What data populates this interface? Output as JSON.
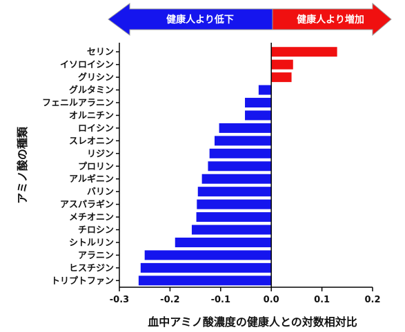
{
  "colors": {
    "decrease": "#1515ee",
    "increase": "#f01010",
    "axis": "#000000",
    "arrow_stroke": "#9a9a9a"
  },
  "banner": {
    "decrease_label": "健康人より低下",
    "increase_label": "健康人より増加"
  },
  "chart_data": {
    "type": "bar",
    "orientation": "horizontal",
    "xlabel": "血中アミノ酸濃度の健康人との対数相対比",
    "ylabel": "アミノ酸の種類",
    "xlim": [
      -0.3,
      0.2
    ],
    "xticks": [
      -0.3,
      -0.2,
      -0.1,
      0.0,
      0.1,
      0.2
    ],
    "xtick_labels": [
      "-0.3",
      "-0.2",
      "-0.1",
      "0.0",
      "0.1",
      "0.2"
    ],
    "grid": false,
    "categories": [
      "セリン",
      "イソロイシン",
      "グリシン",
      "グルタミン",
      "フェニルアラニン",
      "オルニチン",
      "ロイシン",
      "スレオニン",
      "リジン",
      "プロリン",
      "アルギニン",
      "バリン",
      "アスパラギン",
      "メチオニン",
      "チロシン",
      "シトルリン",
      "アラニン",
      "ヒスチジン",
      "トリプトファン"
    ],
    "values": [
      0.13,
      0.043,
      0.04,
      -0.025,
      -0.052,
      -0.052,
      -0.103,
      -0.112,
      -0.122,
      -0.125,
      -0.137,
      -0.145,
      -0.147,
      -0.148,
      -0.157,
      -0.19,
      -0.25,
      -0.258,
      -0.262
    ]
  }
}
